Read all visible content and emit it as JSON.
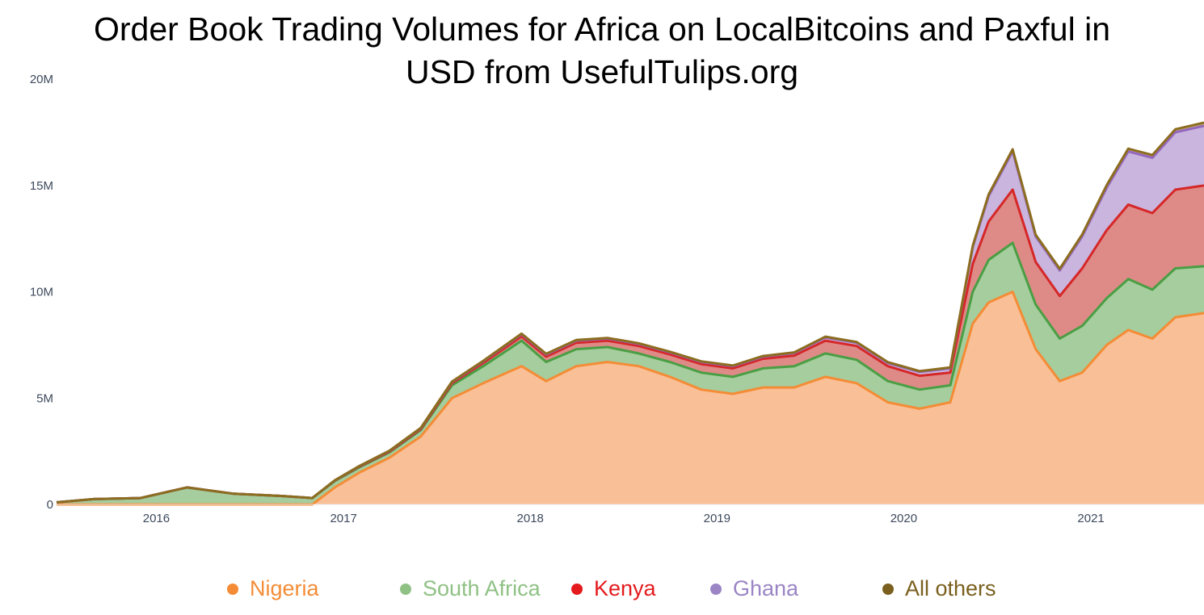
{
  "chart_data": {
    "type": "area",
    "stacked": true,
    "title_lines": [
      "Order Book Trading Volumes for Africa on LocalBitcoins and Paxful in",
      "USD from UsefulTulips.org"
    ],
    "xlabel": "",
    "ylabel": "",
    "x_ticks": [
      "2016",
      "2017",
      "2018",
      "2019",
      "2020",
      "2021"
    ],
    "y_ticks": [
      "0",
      "5M",
      "10M",
      "15M",
      "20M"
    ],
    "ylim": [
      0,
      20000000
    ],
    "xlim": [
      "2015-06-20",
      "2021-08-10"
    ],
    "grid": false,
    "legend_position": "bottom",
    "x": [
      "2015-06-20",
      "2015-09-01",
      "2015-12-01",
      "2016-03-01",
      "2016-06-01",
      "2016-09-01",
      "2016-11-01",
      "2016-12-15",
      "2017-02-01",
      "2017-04-01",
      "2017-06-01",
      "2017-08-01",
      "2017-10-01",
      "2017-12-15",
      "2018-02-01",
      "2018-04-01",
      "2018-06-01",
      "2018-08-01",
      "2018-10-01",
      "2018-12-01",
      "2019-02-01",
      "2019-04-01",
      "2019-06-01",
      "2019-08-01",
      "2019-10-01",
      "2019-12-01",
      "2020-02-01",
      "2020-04-01",
      "2020-05-15",
      "2020-06-15",
      "2020-08-01",
      "2020-09-15",
      "2020-11-01",
      "2020-12-15",
      "2021-02-01",
      "2021-03-15",
      "2021-05-01",
      "2021-06-15",
      "2021-08-10"
    ],
    "series": [
      {
        "name": "Nigeria",
        "color": "#f48c36",
        "fill": "#f9bf96",
        "values": [
          0,
          0,
          0,
          0,
          0,
          0,
          0,
          800000,
          1500000,
          2200000,
          3200000,
          5000000,
          5700000,
          6500000,
          5800000,
          6500000,
          6700000,
          6500000,
          6000000,
          5400000,
          5200000,
          5500000,
          5500000,
          6000000,
          5700000,
          4800000,
          4500000,
          4800000,
          8500000,
          9500000,
          10000000,
          7300000,
          5800000,
          6200000,
          7500000,
          8200000,
          7800000,
          8800000,
          9000000
        ]
      },
      {
        "name": "South Africa",
        "color": "#4a9e44",
        "fill": "#a5cd9d",
        "values": [
          100000,
          250000,
          300000,
          800000,
          500000,
          400000,
          300000,
          300000,
          250000,
          250000,
          300000,
          600000,
          800000,
          1200000,
          900000,
          800000,
          700000,
          600000,
          700000,
          800000,
          800000,
          900000,
          1000000,
          1100000,
          1100000,
          1000000,
          900000,
          800000,
          1500000,
          2000000,
          2300000,
          2100000,
          2000000,
          2200000,
          2200000,
          2400000,
          2300000,
          2300000,
          2200000
        ]
      },
      {
        "name": "Kenya",
        "color": "#d62728",
        "fill": "#de8b88",
        "values": [
          0,
          0,
          0,
          0,
          0,
          0,
          0,
          20000,
          30000,
          40000,
          50000,
          100000,
          150000,
          200000,
          250000,
          300000,
          300000,
          350000,
          350000,
          400000,
          400000,
          450000,
          500000,
          600000,
          650000,
          700000,
          650000,
          600000,
          1300000,
          1800000,
          2500000,
          2000000,
          2000000,
          2700000,
          3200000,
          3500000,
          3600000,
          3700000,
          3800000
        ]
      },
      {
        "name": "Ghana",
        "color": "#9467bd",
        "fill": "#c9b5dd",
        "values": [
          0,
          0,
          0,
          0,
          0,
          0,
          0,
          10000,
          20000,
          30000,
          40000,
          60000,
          80000,
          100000,
          100000,
          100000,
          100000,
          100000,
          100000,
          100000,
          100000,
          100000,
          120000,
          150000,
          150000,
          150000,
          180000,
          200000,
          800000,
          1200000,
          1800000,
          1200000,
          1200000,
          1500000,
          2000000,
          2500000,
          2600000,
          2700000,
          2800000
        ]
      },
      {
        "name": "All others",
        "color": "#8c6d1f",
        "fill": "#c4b084",
        "values": [
          0,
          0,
          0,
          0,
          0,
          0,
          0,
          5000,
          10000,
          10000,
          10000,
          20000,
          20000,
          30000,
          30000,
          30000,
          30000,
          30000,
          30000,
          30000,
          30000,
          30000,
          30000,
          40000,
          40000,
          40000,
          40000,
          40000,
          60000,
          80000,
          100000,
          80000,
          80000,
          100000,
          120000,
          130000,
          130000,
          140000,
          150000
        ]
      }
    ]
  },
  "legend": {
    "items": [
      {
        "label": "Nigeria",
        "color": "#f48c36"
      },
      {
        "label": "South Africa",
        "color": "#8fc184"
      },
      {
        "label": "Kenya",
        "color": "#e41a1c"
      },
      {
        "label": "Ghana",
        "color": "#9b85c5"
      },
      {
        "label": "All others",
        "color": "#7a5f1e"
      }
    ]
  }
}
